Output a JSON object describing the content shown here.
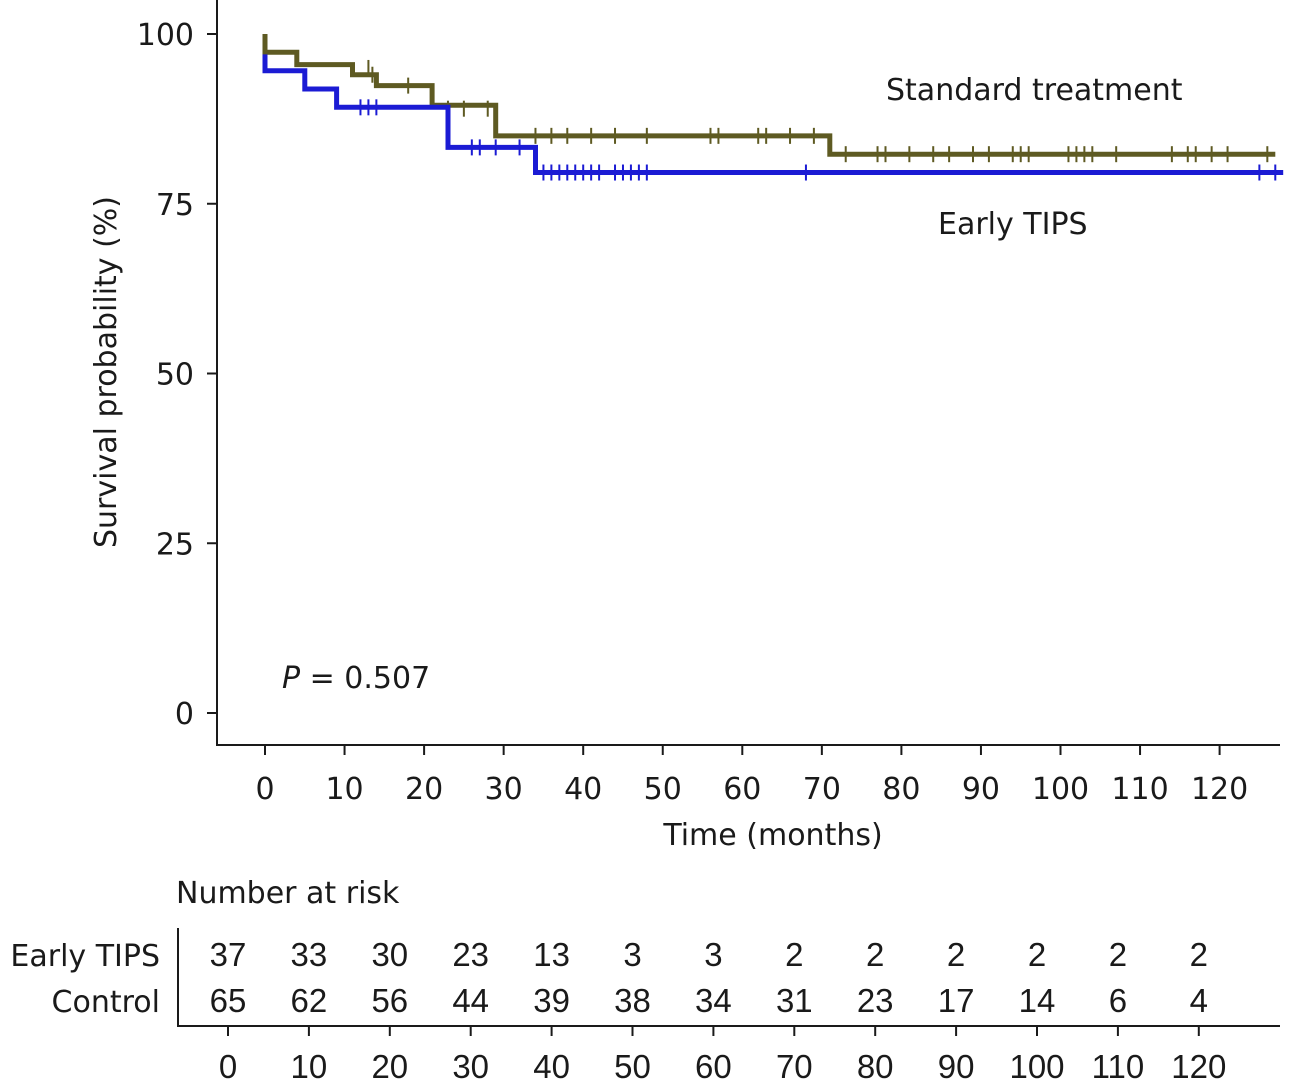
{
  "chart_data": {
    "type": "line",
    "subtype": "kaplan-meier",
    "title": "",
    "xlabel": "Time (months)",
    "ylabel": "Survival probability (%)",
    "xlim": [
      0,
      130
    ],
    "ylim": [
      0,
      100
    ],
    "x_ticks": [
      0,
      10,
      20,
      30,
      40,
      50,
      60,
      70,
      80,
      90,
      100,
      110,
      120
    ],
    "y_ticks": [
      0,
      25,
      50,
      75,
      100
    ],
    "grid": false,
    "annotation": {
      "italic": "P",
      "rest": " = 0.507"
    },
    "series": [
      {
        "name": "Standard treatment",
        "color": "#5e5a22",
        "steps": [
          [
            0,
            100
          ],
          [
            0,
            97.3
          ],
          [
            4,
            97.3
          ],
          [
            4,
            95.5
          ],
          [
            11,
            95.5
          ],
          [
            11,
            94
          ],
          [
            14,
            94
          ],
          [
            14,
            92.4
          ],
          [
            21,
            92.4
          ],
          [
            21,
            89.5
          ],
          [
            29,
            89.5
          ],
          [
            29,
            85
          ],
          [
            71,
            85
          ],
          [
            71,
            82.3
          ],
          [
            127,
            82.3
          ]
        ],
        "censored": [
          [
            13,
            95
          ],
          [
            13.5,
            94
          ],
          [
            18,
            92.4
          ],
          [
            23,
            89
          ],
          [
            25,
            89
          ],
          [
            28,
            89
          ],
          [
            34,
            85
          ],
          [
            36,
            85
          ],
          [
            38,
            85
          ],
          [
            41,
            85
          ],
          [
            44,
            85
          ],
          [
            48,
            85
          ],
          [
            56,
            85
          ],
          [
            57,
            85
          ],
          [
            62,
            85
          ],
          [
            63,
            85
          ],
          [
            66,
            85
          ],
          [
            69,
            85
          ],
          [
            73,
            82.3
          ],
          [
            77,
            82.3
          ],
          [
            78,
            82.3
          ],
          [
            81,
            82.3
          ],
          [
            84,
            82.3
          ],
          [
            86,
            82.3
          ],
          [
            89,
            82.3
          ],
          [
            91,
            82.3
          ],
          [
            94,
            82.3
          ],
          [
            95,
            82.3
          ],
          [
            96,
            82.3
          ],
          [
            101,
            82.3
          ],
          [
            102,
            82.3
          ],
          [
            103,
            82.3
          ],
          [
            104,
            82.3
          ],
          [
            107,
            82.3
          ],
          [
            114,
            82.3
          ],
          [
            116,
            82.3
          ],
          [
            117,
            82.3
          ],
          [
            119,
            82.3
          ],
          [
            121,
            82.3
          ],
          [
            126,
            82.3
          ]
        ]
      },
      {
        "name": "Early TIPS",
        "color": "#1b1bd4",
        "steps": [
          [
            0,
            97
          ],
          [
            0,
            94.6
          ],
          [
            5,
            94.6
          ],
          [
            5,
            91.9
          ],
          [
            9,
            91.9
          ],
          [
            9,
            89.2
          ],
          [
            23,
            89.2
          ],
          [
            23,
            83.3
          ],
          [
            34,
            83.3
          ],
          [
            34,
            79.6
          ],
          [
            128,
            79.6
          ]
        ],
        "censored": [
          [
            12,
            89.2
          ],
          [
            13,
            89.2
          ],
          [
            14,
            89.2
          ],
          [
            26,
            83.3
          ],
          [
            27,
            83.3
          ],
          [
            29,
            83.3
          ],
          [
            32,
            83.3
          ],
          [
            35,
            79.6
          ],
          [
            36,
            79.6
          ],
          [
            37,
            79.6
          ],
          [
            38,
            79.6
          ],
          [
            39,
            79.6
          ],
          [
            40,
            79.6
          ],
          [
            41,
            79.6
          ],
          [
            42,
            79.6
          ],
          [
            44,
            79.6
          ],
          [
            45,
            79.6
          ],
          [
            46,
            79.6
          ],
          [
            47,
            79.6
          ],
          [
            48,
            79.6
          ],
          [
            68,
            79.6
          ],
          [
            125,
            79.6
          ],
          [
            127,
            79.6
          ]
        ]
      }
    ]
  },
  "risk_table": {
    "title": "Number at risk",
    "time_points": [
      0,
      10,
      20,
      30,
      40,
      50,
      60,
      70,
      80,
      90,
      100,
      110,
      120
    ],
    "rows": [
      {
        "label": "Early TIPS",
        "values": [
          37,
          33,
          30,
          23,
          13,
          3,
          3,
          2,
          2,
          2,
          2,
          2,
          2
        ]
      },
      {
        "label": "Control",
        "values": [
          65,
          62,
          56,
          44,
          39,
          38,
          34,
          31,
          23,
          17,
          14,
          6,
          4
        ]
      }
    ]
  }
}
